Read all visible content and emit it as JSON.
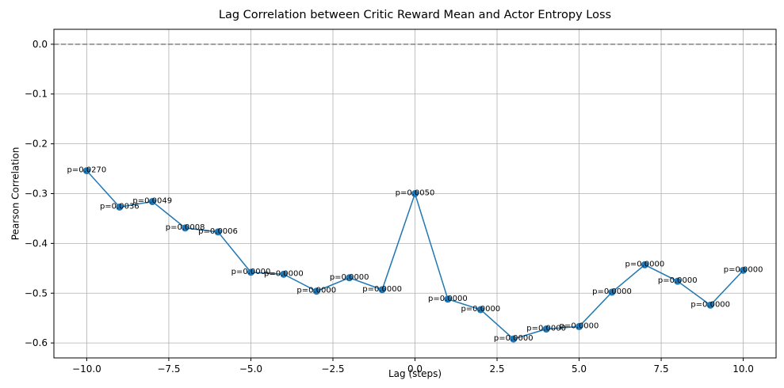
{
  "chart_data": {
    "type": "line",
    "title": "Lag Correlation between Critic Reward Mean and Actor Entropy Loss",
    "xlabel": "Lag (steps)",
    "ylabel": "Pearson Correlation",
    "xlim": [
      -11,
      11
    ],
    "ylim": [
      -0.63,
      0.03
    ],
    "xticks": [
      -10.0,
      -7.5,
      -5.0,
      -2.5,
      0.0,
      2.5,
      5.0,
      7.5,
      10.0
    ],
    "xtick_labels": [
      "−10.0",
      "−7.5",
      "−5.0",
      "−2.5",
      "0.0",
      "2.5",
      "5.0",
      "7.5",
      "10.0"
    ],
    "yticks": [
      0.0,
      -0.1,
      -0.2,
      -0.3,
      -0.4,
      -0.5,
      -0.6
    ],
    "ytick_labels": [
      "0.0",
      "−0.1",
      "−0.2",
      "−0.3",
      "−0.4",
      "−0.5",
      "−0.6"
    ],
    "grid": true,
    "reference_line": {
      "y": 0.0,
      "style": "dashed",
      "color": "#808080"
    },
    "series": [
      {
        "color": "#1f77b4",
        "marker": "circle",
        "x": [
          -10,
          -9,
          -8,
          -7,
          -6,
          -5,
          -4,
          -3,
          -2,
          -1,
          0,
          1,
          2,
          3,
          4,
          5,
          6,
          7,
          8,
          9,
          10
        ],
        "y": [
          -0.254,
          -0.327,
          -0.316,
          -0.369,
          -0.377,
          -0.458,
          -0.462,
          -0.496,
          -0.469,
          -0.493,
          -0.3,
          -0.512,
          -0.533,
          -0.592,
          -0.572,
          -0.567,
          -0.498,
          -0.443,
          -0.476,
          -0.524,
          -0.454
        ],
        "annotations": [
          "p=0.0270",
          "p=0.0036",
          "p=0.0049",
          "p=0.0008",
          "p=0.0006",
          "p=0.0000",
          "p=0.0000",
          "p=0.0000",
          "p=0.0000",
          "p=0.0000",
          "p=0.0050",
          "p=0.0000",
          "p=0.0000",
          "p=0.0000",
          "p=0.0000",
          "p=0.0000",
          "p=0.0000",
          "p=0.0000",
          "p=0.0000",
          "p=0.0000",
          "p=0.0000"
        ]
      }
    ]
  }
}
